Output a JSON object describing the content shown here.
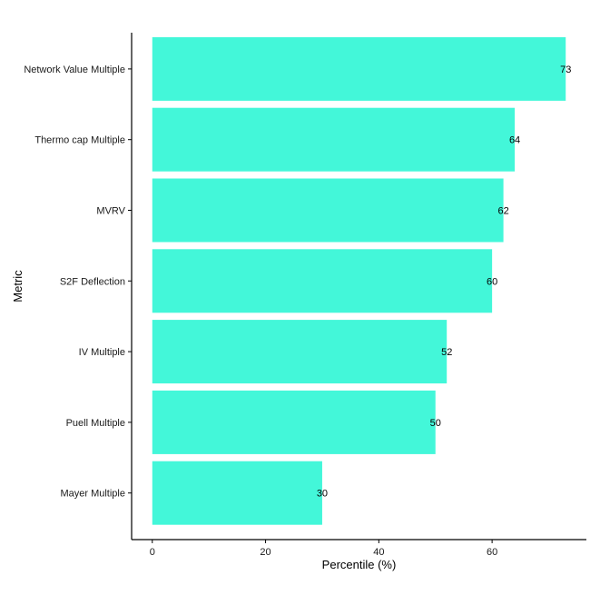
{
  "colors": {
    "bar": "#43F7D9",
    "axis": "#000000",
    "text": "#1a1a1a",
    "background": "#ffffff"
  },
  "chart_data": {
    "type": "bar",
    "orientation": "horizontal",
    "categories": [
      "Network Value Multiple",
      "Thermo cap Multiple",
      "MVRV",
      "S2F Deflection",
      "IV Multiple",
      "Puell Multiple",
      "Mayer Multiple"
    ],
    "values": [
      73,
      64,
      62,
      60,
      52,
      50,
      30
    ],
    "data_labels": [
      "73",
      "64",
      "62",
      "60",
      "52",
      "50",
      "30"
    ],
    "xlabel": "Percentile (%)",
    "ylabel": "Metric",
    "xlim": [
      -3.65,
      76.65
    ],
    "xticks": [
      0,
      20,
      40,
      60
    ],
    "xtick_labels": [
      "0",
      "20",
      "40",
      "60"
    ],
    "grid": false,
    "legend": "none"
  }
}
